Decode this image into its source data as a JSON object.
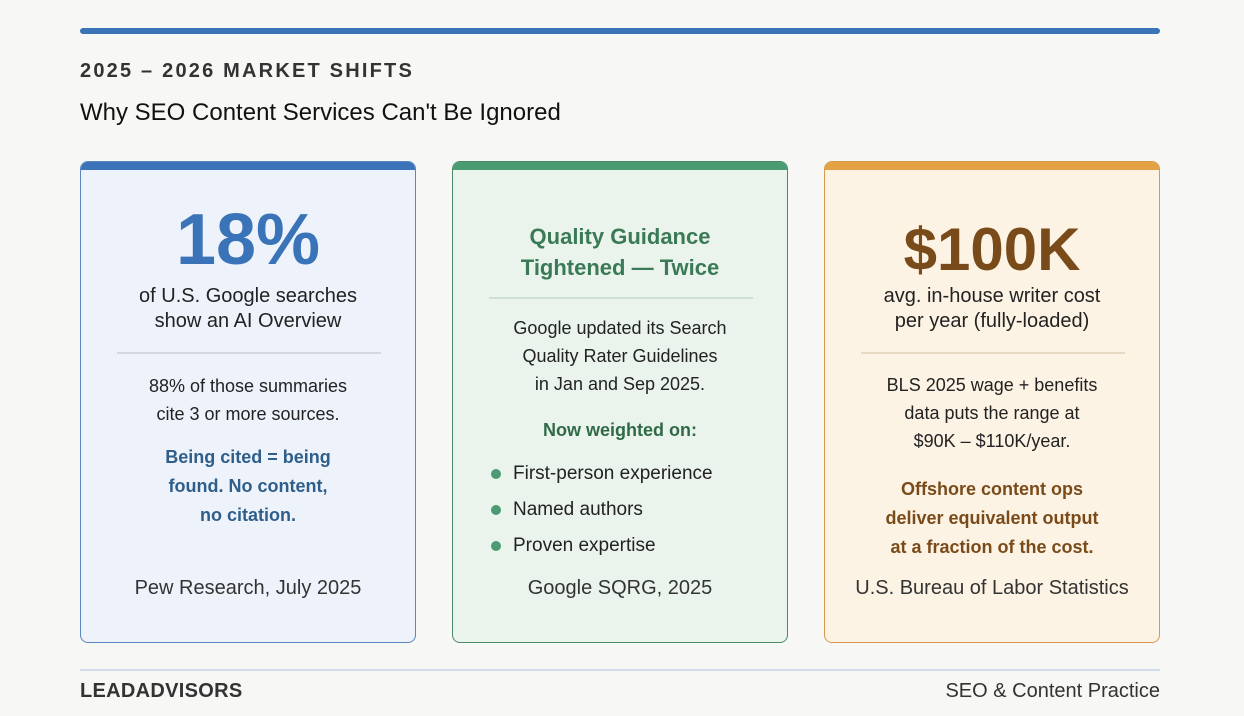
{
  "header": {
    "eyebrow": "2025 – 2026 MARKET SHIFTS",
    "headline": "Why SEO Content Services Can't Be Ignored"
  },
  "cards": [
    {
      "stat": "18%",
      "sub_lines": [
        "of U.S. Google searches",
        "show an AI Overview"
      ],
      "body_lines": [
        "88% of those summaries",
        "cite 3 or more sources."
      ],
      "callout_lines": [
        "Being cited = being",
        "found. No content,",
        "no citation."
      ],
      "source": "Pew Research, July 2025",
      "accent": "#3b73b9"
    },
    {
      "title_lines": [
        "Quality Guidance",
        "Tightened — Twice"
      ],
      "body_lines": [
        "Google updated its Search",
        "Quality Rater Guidelines",
        "in Jan and Sep 2025."
      ],
      "weighted_label": "Now weighted on:",
      "bullets": [
        "First-person experience",
        "Named authors",
        "Proven expertise"
      ],
      "source": "Google SQRG, 2025",
      "accent": "#4a9a72"
    },
    {
      "stat": "$100K",
      "sub_lines": [
        "avg. in-house writer cost",
        "per year (fully-loaded)"
      ],
      "body_lines": [
        "BLS 2025 wage + benefits",
        "data puts the range at",
        "$90K – $110K/year."
      ],
      "callout_lines": [
        "Offshore content ops",
        "deliver equivalent output",
        "at a fraction of the cost."
      ],
      "source": "U.S. Bureau of Labor Statistics",
      "accent": "#e3a244"
    }
  ],
  "footer": {
    "brand": "LEADADVISORS",
    "practice": "SEO & Content Practice"
  }
}
